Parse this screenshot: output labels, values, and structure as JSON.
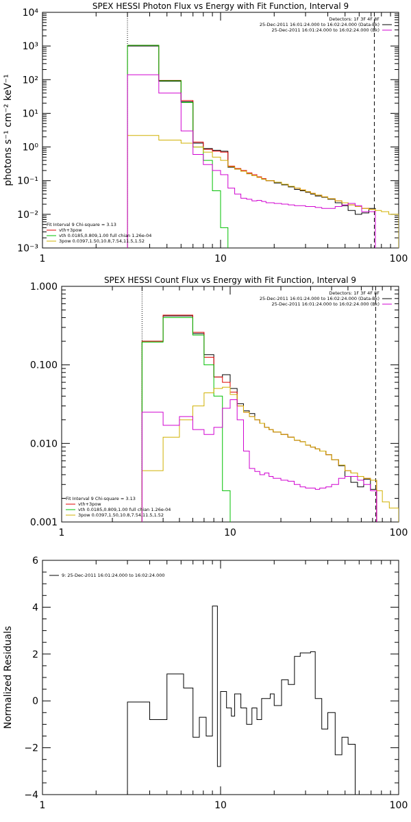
{
  "chart_data": [
    {
      "type": "line",
      "title": "SPEX HESSI Photon Flux vs Energy with Fit Function, Interval 9",
      "xlabel": "",
      "ylabel": "photons s⁻¹ cm⁻² keV⁻¹",
      "xscale": "log",
      "yscale": "log",
      "xlim": [
        1,
        100
      ],
      "ylim": [
        0.001,
        10000
      ],
      "xticks": [
        {
          "v": 1,
          "label": "1"
        },
        {
          "v": 10,
          "label": "10"
        },
        {
          "v": 100,
          "label": "100"
        }
      ],
      "yticks": [
        {
          "v": 0.001,
          "label": "10⁻³"
        },
        {
          "v": 0.01,
          "label": "10⁻²"
        },
        {
          "v": 0.1,
          "label": "10⁻¹"
        },
        {
          "v": 1,
          "label": "10⁰"
        },
        {
          "v": 10,
          "label": "10¹"
        },
        {
          "v": 100,
          "label": "10²"
        },
        {
          "v": 1000,
          "label": "10³"
        },
        {
          "v": 10000,
          "label": "10⁴"
        }
      ],
      "vlines": [
        {
          "x": 3.0,
          "style": "dotted",
          "color": "#000000"
        },
        {
          "x": 73.0,
          "style": "dashed",
          "color": "#000000"
        }
      ],
      "legend_topright": [
        {
          "text": "Detectors: 1F 3F 4F 8F",
          "color": "#000000"
        },
        {
          "text": "25-Dec-2011 16:01:24.000 to 16:02:24.000 (Data-Bk)",
          "color": "#000000"
        },
        {
          "text": "25-Dec-2011 16:01:24.000 to 16:02:24.000 (Bk)",
          "color": "#d000d0"
        }
      ],
      "legend_bottomleft": [
        {
          "text": "Fit Interval 9   Chi-square = 3.13",
          "color": "#000000"
        },
        {
          "text": "vth+3pow",
          "color": "#e00000"
        },
        {
          "text": "vth 0.0185,0.809,1.00  full chian 1.26e-04",
          "color": "#00c000"
        },
        {
          "text": "3pow 0.0397,1.50,10.8,7.54,11.5,1.52",
          "color": "#d0b000"
        }
      ],
      "edges": [
        3.0,
        3.5,
        4.0,
        4.5,
        5.0,
        5.5,
        6.0,
        7.0,
        8.0,
        9.0,
        10.0,
        11.0,
        12.0,
        13.0,
        14.0,
        15.0,
        16.0,
        17.0,
        18.0,
        20.0,
        22.0,
        24.0,
        26.0,
        28.0,
        30.0,
        32.0,
        34.0,
        37.0,
        40.0,
        44.0,
        48.0,
        52.0,
        57.0,
        62.0,
        68.0,
        74.0,
        80.0,
        88.0,
        100.0
      ],
      "series": [
        {
          "name": "",
          "color": "#000000",
          "values": [
            1000,
            1000,
            1000,
            90,
            90,
            90,
            22,
            1.3,
            0.9,
            0.8,
            0.75,
            0.25,
            0.22,
            0.19,
            0.16,
            0.14,
            0.125,
            0.11,
            0.1,
            0.085,
            0.075,
            0.065,
            0.055,
            0.05,
            0.045,
            0.04,
            0.035,
            0.032,
            0.028,
            0.022,
            0.018,
            0.013,
            0.01,
            0.011,
            0.015
          ]
        },
        {
          "name": "vth+3pow",
          "color": "#e00000",
          "values": [
            1050,
            1050,
            1050,
            95,
            95,
            95,
            24,
            1.4,
            0.85,
            0.75,
            0.7,
            0.27,
            0.23,
            0.2,
            0.17,
            0.15,
            0.13,
            0.115,
            0.1,
            0.09,
            0.078,
            0.068,
            0.06,
            0.053,
            0.047,
            0.042,
            0.037,
            0.033,
            0.029,
            0.025,
            0.022,
            0.019,
            0.017,
            0.015,
            0.014
          ]
        },
        {
          "name": "vth",
          "color": "#00c000",
          "values": [
            1050,
            1050,
            1050,
            93,
            93,
            93,
            21,
            1.0,
            0.4,
            0.05,
            0.004,
            0.0003
          ]
        },
        {
          "name": "3pow",
          "color": "#d0b000",
          "values": [
            2.2,
            2.2,
            2.2,
            1.6,
            1.6,
            1.6,
            1.3,
            1.0,
            0.7,
            0.5,
            0.4,
            0.26,
            0.22,
            0.19,
            0.16,
            0.14,
            0.125,
            0.11,
            0.1,
            0.09,
            0.078,
            0.068,
            0.06,
            0.053,
            0.047,
            0.042,
            0.037,
            0.033,
            0.029,
            0.025,
            0.022,
            0.019,
            0.017,
            0.015,
            0.014,
            0.013,
            0.012,
            0.01
          ]
        },
        {
          "name": "",
          "color": "#d000d0",
          "values": [
            140,
            140,
            140,
            40,
            40,
            40,
            3.0,
            0.6,
            0.3,
            0.2,
            0.15,
            0.06,
            0.04,
            0.03,
            0.028,
            0.025,
            0.026,
            0.024,
            0.022,
            0.021,
            0.02,
            0.019,
            0.018,
            0.018,
            0.017,
            0.017,
            0.016,
            0.015,
            0.015,
            0.017,
            0.019,
            0.021,
            0.018,
            0.012,
            0.012
          ]
        }
      ]
    },
    {
      "type": "line",
      "title": "SPEX HESSI Count Flux vs Energy with Fit Function, Interval 9",
      "xlabel": "",
      "ylabel": "",
      "xscale": "log",
      "yscale": "log",
      "xlim": [
        1,
        100
      ],
      "ylim": [
        0.001,
        1
      ],
      "xticks": [
        {
          "v": 1,
          "label": "1"
        },
        {
          "v": 10,
          "label": "10"
        },
        {
          "v": 100,
          "label": "100"
        }
      ],
      "yticks": [
        {
          "v": 0.001,
          "label": "0.001"
        },
        {
          "v": 0.01,
          "label": "0.010"
        },
        {
          "v": 0.1,
          "label": "0.100"
        },
        {
          "v": 1,
          "label": "1.000"
        }
      ],
      "vlines": [
        {
          "x": 3.0,
          "style": "dotted",
          "color": "#000000"
        },
        {
          "x": 73.0,
          "style": "dashed",
          "color": "#000000"
        }
      ],
      "legend_topright": [
        {
          "text": "Detectors: 1F 3F 4F 8F",
          "color": "#000000"
        },
        {
          "text": "25-Dec-2011 16:01:24.000 to 16:02:24.000 (Data-Bk)",
          "color": "#000000"
        },
        {
          "text": "25-Dec-2011 16:01:24.000 to 16:02:24.000 (Bk)",
          "color": "#d000d0"
        }
      ],
      "legend_bottomleft": [
        {
          "text": "Fit Interval 9   Chi-square = 3.13",
          "color": "#000000"
        },
        {
          "text": "vth+3pow",
          "color": "#e00000"
        },
        {
          "text": "vth 0.0185,0.809,1.00  full chian 1.26e-04",
          "color": "#00c000"
        },
        {
          "text": "3pow 0.0397,1.50,10.8,7.54,11.5,1.52",
          "color": "#d0b000"
        }
      ],
      "edges": [
        3.0,
        3.5,
        4.0,
        4.5,
        5.0,
        5.5,
        6.0,
        7.0,
        8.0,
        9.0,
        10.0,
        11.0,
        12.0,
        13.0,
        14.0,
        15.0,
        16.0,
        17.0,
        18.0,
        20.0,
        22.0,
        24.0,
        26.0,
        28.0,
        30.0,
        32.0,
        34.0,
        37.0,
        40.0,
        44.0,
        48.0,
        52.0,
        57.0,
        62.0,
        68.0,
        74.0,
        80.0,
        88.0,
        100.0
      ],
      "series": [
        {
          "name": "",
          "color": "#000000",
          "values": [
            0.2,
            0.2,
            0.42,
            0.42,
            0.42,
            0.42,
            0.25,
            0.135,
            0.07,
            0.075,
            0.05,
            0.032,
            0.026,
            0.024,
            0.02,
            0.018,
            0.016,
            0.015,
            0.014,
            0.013,
            0.012,
            0.011,
            0.0105,
            0.0095,
            0.009,
            0.0085,
            0.008,
            0.0072,
            0.0062,
            0.0052,
            0.0038,
            0.0032,
            0.0028,
            0.0035,
            0.0026
          ]
        },
        {
          "name": "vth+3pow",
          "color": "#e00000",
          "values": [
            0.2,
            0.2,
            0.43,
            0.43,
            0.43,
            0.43,
            0.26,
            0.125,
            0.07,
            0.06,
            0.045,
            0.03,
            0.025,
            0.022,
            0.02,
            0.018,
            0.016,
            0.015,
            0.014,
            0.013,
            0.012,
            0.011,
            0.0105,
            0.0095,
            0.009,
            0.0085,
            0.008,
            0.0072,
            0.0062,
            0.0053,
            0.0045,
            0.0042,
            0.0038,
            0.0036,
            0.0034
          ]
        },
        {
          "name": "vth",
          "color": "#00c000",
          "values": [
            0.195,
            0.195,
            0.4,
            0.4,
            0.4,
            0.4,
            0.24,
            0.1,
            0.04,
            0.0025,
            0.0008
          ]
        },
        {
          "name": "3pow",
          "color": "#d0b000",
          "values": [
            0.0045,
            0.0045,
            0.012,
            0.012,
            0.02,
            0.02,
            0.03,
            0.044,
            0.05,
            0.052,
            0.042,
            0.03,
            0.025,
            0.022,
            0.02,
            0.018,
            0.016,
            0.015,
            0.014,
            0.013,
            0.012,
            0.011,
            0.0105,
            0.0095,
            0.009,
            0.0085,
            0.008,
            0.0072,
            0.0062,
            0.0053,
            0.0045,
            0.0042,
            0.0038,
            0.0036,
            0.0034,
            0.0025,
            0.0018,
            0.0015
          ]
        },
        {
          "name": "",
          "color": "#d000d0",
          "values": [
            0.025,
            0.025,
            0.017,
            0.017,
            0.022,
            0.022,
            0.015,
            0.013,
            0.016,
            0.028,
            0.036,
            0.02,
            0.008,
            0.0048,
            0.0044,
            0.004,
            0.0042,
            0.0038,
            0.0036,
            0.0034,
            0.0033,
            0.003,
            0.0028,
            0.0027,
            0.0027,
            0.0026,
            0.0027,
            0.0028,
            0.003,
            0.0036,
            0.0038,
            0.0038,
            0.0034,
            0.003,
            0.0025
          ]
        }
      ]
    },
    {
      "type": "line",
      "title": "",
      "xlabel": "",
      "ylabel": "Normalized Residuals",
      "xscale": "log",
      "yscale": "linear",
      "xlim": [
        1,
        100
      ],
      "ylim": [
        -4,
        6
      ],
      "xticks": [
        {
          "v": 1,
          "label": "1"
        },
        {
          "v": 10,
          "label": "10"
        },
        {
          "v": 100,
          "label": "100"
        }
      ],
      "yticks": [
        {
          "v": -4,
          "label": "−4"
        },
        {
          "v": -2,
          "label": "−2"
        },
        {
          "v": 0,
          "label": "0"
        },
        {
          "v": 2,
          "label": "2"
        },
        {
          "v": 4,
          "label": "4"
        },
        {
          "v": 6,
          "label": "6"
        }
      ],
      "vlines": [],
      "legend_topright": [],
      "legend_bottomleft": [],
      "legend_topleft": [
        {
          "text": "9: 25-Dec-2011 16:01:24.000 to 16:02:24.000",
          "color": "#000000"
        }
      ],
      "edges": [
        3.0,
        4.0,
        5.0,
        5.6,
        6.2,
        7.0,
        7.6,
        8.3,
        9.0,
        9.6,
        10.0,
        10.8,
        11.5,
        12.0,
        13.0,
        14.0,
        15.0,
        16.0,
        17.0,
        18.0,
        19.0,
        20.0,
        22.0,
        24.0,
        26.0,
        28.0,
        30.0,
        32.0,
        34.0,
        37.0,
        40.0,
        44.0,
        48.0,
        52.0,
        57.0,
        62.0,
        68.0,
        74.0
      ],
      "series": [
        {
          "name": "",
          "color": "#000000",
          "values": [
            -0.05,
            -0.8,
            1.15,
            1.15,
            0.55,
            -1.55,
            -0.7,
            -1.5,
            4.05,
            -2.8,
            0.4,
            -0.3,
            -0.65,
            0.3,
            -0.3,
            -1.0,
            -0.3,
            -0.8,
            0.1,
            0.1,
            0.3,
            -0.2,
            0.9,
            0.7,
            1.9,
            2.05,
            2.05,
            2.1,
            0.1,
            -1.2,
            -0.5,
            -2.3,
            -1.55,
            -1.85
          ]
        }
      ]
    }
  ]
}
